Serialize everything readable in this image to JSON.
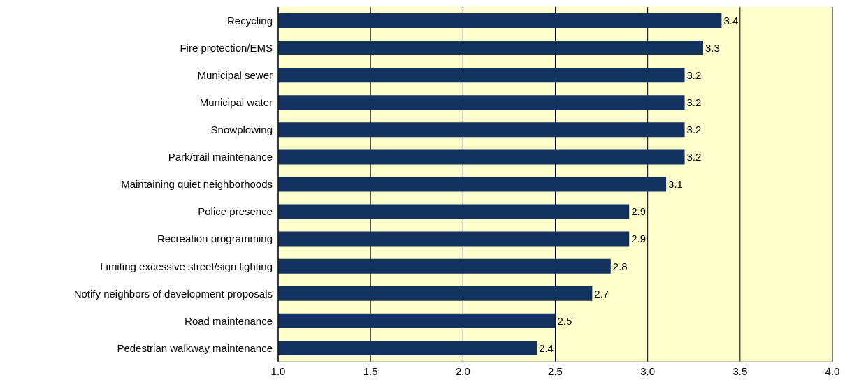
{
  "chart_data": {
    "type": "bar",
    "orientation": "horizontal",
    "categories": [
      "Recycling",
      "Fire protection/EMS",
      "Municipal sewer",
      "Municipal water",
      "Snowplowing",
      "Park/trail maintenance",
      "Maintaining quiet neighborhoods",
      "Police presence",
      "Recreation programming",
      "Limiting excessive street/sign lighting",
      "Notify neighbors of development proposals",
      "Road maintenance",
      "Pedestrian walkway maintenance"
    ],
    "values": [
      3.4,
      3.3,
      3.2,
      3.2,
      3.2,
      3.2,
      3.1,
      2.9,
      2.9,
      2.8,
      2.7,
      2.5,
      2.4
    ],
    "color": "#14325f",
    "xlim": [
      1,
      4
    ],
    "xticks": [
      {
        "value": 1,
        "label": "1.0"
      },
      {
        "value": 1.5,
        "label": "1.5"
      },
      {
        "value": 2,
        "label": "2.0"
      },
      {
        "value": 2.5,
        "label": "2.5"
      },
      {
        "value": 3,
        "label": "3.0"
      },
      {
        "value": 3.5,
        "label": "3.5"
      },
      {
        "value": 4,
        "label": "4.0"
      }
    ],
    "grid": "x",
    "data_labels": true
  }
}
